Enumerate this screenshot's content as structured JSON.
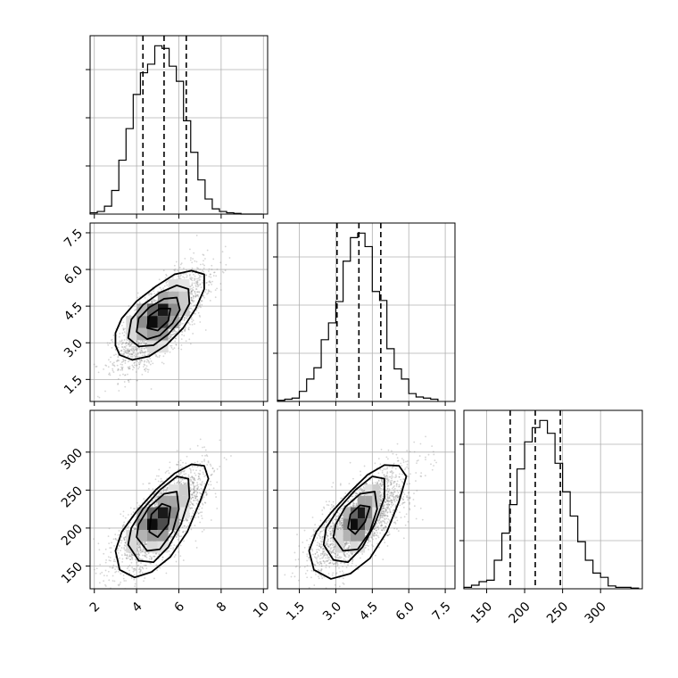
{
  "chart_data": {
    "type": "corner",
    "parameters": [
      {
        "key": "p0",
        "range": [
          1.8,
          10.2
        ],
        "ticks": [
          "2",
          "4",
          "6",
          "8",
          "10"
        ],
        "tick_values": [
          2,
          4,
          6,
          8,
          10
        ],
        "quantiles": [
          4.3,
          5.3,
          6.35
        ],
        "hist_x": [
          1.8,
          2.14,
          2.48,
          2.82,
          3.16,
          3.5,
          3.84,
          4.18,
          4.52,
          4.86,
          5.2,
          5.54,
          5.88,
          6.22,
          6.56,
          6.9,
          7.24,
          7.58,
          7.92,
          8.26,
          8.6,
          8.94,
          9.28,
          9.62,
          9.96
        ],
        "hist_counts": [
          2,
          4,
          12,
          36,
          82,
          130,
          182,
          215,
          228,
          256,
          252,
          225,
          202,
          142,
          94,
          52,
          23,
          8,
          4,
          2,
          1,
          0,
          0,
          0
        ]
      },
      {
        "key": "p1",
        "range": [
          0.6,
          7.9
        ],
        "ticks": [
          "1.5",
          "3.0",
          "4.5",
          "6.0",
          "7.5"
        ],
        "tick_values": [
          1.5,
          3.0,
          4.5,
          6.0,
          7.5
        ],
        "quantiles": [
          3.05,
          3.95,
          4.85
        ],
        "hist_x": [
          0.6,
          0.9,
          1.2,
          1.5,
          1.8,
          2.1,
          2.4,
          2.7,
          3.0,
          3.3,
          3.6,
          3.9,
          4.2,
          4.5,
          4.8,
          5.1,
          5.4,
          5.7,
          6.0,
          6.3,
          6.6,
          6.9,
          7.2
        ],
        "hist_counts": [
          2,
          4,
          6,
          18,
          40,
          60,
          110,
          140,
          178,
          250,
          292,
          300,
          276,
          196,
          180,
          94,
          58,
          40,
          14,
          8,
          6,
          4
        ]
      },
      {
        "key": "p2",
        "range": [
          120,
          355
        ],
        "ticks": [
          "150",
          "200",
          "250",
          "300"
        ],
        "tick_values": [
          150,
          200,
          250,
          300
        ],
        "quantiles": [
          181,
          214,
          247
        ],
        "hist_x": [
          120,
          130,
          140,
          150,
          160,
          170,
          180,
          190,
          200,
          210,
          220,
          230,
          240,
          250,
          260,
          270,
          280,
          290,
          300,
          310,
          320,
          330,
          340,
          350
        ],
        "hist_counts": [
          2,
          5,
          10,
          12,
          40,
          78,
          118,
          168,
          206,
          226,
          236,
          218,
          176,
          136,
          102,
          66,
          40,
          22,
          16,
          4,
          2,
          2,
          1
        ]
      }
    ],
    "pairs": [
      {
        "x": "p0",
        "y": "p1",
        "center": [
          5.2,
          4.0
        ],
        "contours": [
          [
            [
              3.0,
              2.9
            ],
            [
              3.2,
              2.5
            ],
            [
              3.8,
              2.3
            ],
            [
              4.6,
              2.45
            ],
            [
              5.4,
              2.9
            ],
            [
              6.2,
              3.6
            ],
            [
              6.8,
              4.4
            ],
            [
              7.2,
              5.2
            ],
            [
              7.2,
              5.8
            ],
            [
              6.6,
              5.95
            ],
            [
              5.8,
              5.8
            ],
            [
              4.9,
              5.3
            ],
            [
              4.0,
              4.7
            ],
            [
              3.3,
              4.0
            ],
            [
              3.0,
              3.4
            ]
          ],
          [
            [
              3.6,
              3.2
            ],
            [
              4.1,
              2.85
            ],
            [
              4.8,
              2.9
            ],
            [
              5.5,
              3.35
            ],
            [
              6.1,
              3.95
            ],
            [
              6.5,
              4.6
            ],
            [
              6.45,
              5.2
            ],
            [
              5.9,
              5.35
            ],
            [
              5.1,
              5.05
            ],
            [
              4.3,
              4.55
            ],
            [
              3.75,
              3.95
            ]
          ],
          [
            [
              4.0,
              3.45
            ],
            [
              4.5,
              3.15
            ],
            [
              5.1,
              3.3
            ],
            [
              5.7,
              3.8
            ],
            [
              6.05,
              4.35
            ],
            [
              5.9,
              4.85
            ],
            [
              5.3,
              4.8
            ],
            [
              4.6,
              4.45
            ],
            [
              4.1,
              4.0
            ]
          ],
          [
            [
              4.5,
              3.6
            ],
            [
              5.0,
              3.5
            ],
            [
              5.5,
              3.9
            ],
            [
              5.6,
              4.4
            ],
            [
              5.1,
              4.4
            ],
            [
              4.6,
              4.1
            ]
          ]
        ],
        "density_cells": [
          [
            4.75,
            3.85,
            0.95
          ],
          [
            5.25,
            4.35,
            0.9
          ],
          [
            5.25,
            3.85,
            0.7
          ],
          [
            4.75,
            4.35,
            0.6
          ],
          [
            4.25,
            3.85,
            0.45
          ],
          [
            5.75,
            4.35,
            0.45
          ],
          [
            5.25,
            3.35,
            0.4
          ],
          [
            4.75,
            3.35,
            0.4
          ],
          [
            5.75,
            3.85,
            0.35
          ],
          [
            4.25,
            3.35,
            0.3
          ],
          [
            5.75,
            4.85,
            0.3
          ],
          [
            5.25,
            4.85,
            0.35
          ],
          [
            4.25,
            4.35,
            0.3
          ],
          [
            6.25,
            4.85,
            0.2
          ],
          [
            6.25,
            4.35,
            0.2
          ],
          [
            3.75,
            3.35,
            0.15
          ],
          [
            3.75,
            3.85,
            0.15
          ],
          [
            4.75,
            2.85,
            0.15
          ],
          [
            5.25,
            2.85,
            0.12
          ],
          [
            5.75,
            5.35,
            0.12
          ],
          [
            6.25,
            5.35,
            0.1
          ]
        ],
        "cell_size": [
          0.5,
          0.5
        ],
        "spread": [
          1.0,
          0.95
        ],
        "rho": 0.72
      },
      {
        "x": "p0",
        "y": "p2",
        "center": [
          5.2,
          212
        ],
        "contours": [
          [
            [
              3.0,
              170
            ],
            [
              3.2,
              145
            ],
            [
              3.9,
              135
            ],
            [
              4.7,
              142
            ],
            [
              5.6,
              162
            ],
            [
              6.4,
              195
            ],
            [
              7.0,
              235
            ],
            [
              7.4,
              265
            ],
            [
              7.2,
              282
            ],
            [
              6.6,
              284
            ],
            [
              5.8,
              272
            ],
            [
              4.9,
              250
            ],
            [
              4.0,
              222
            ],
            [
              3.3,
              195
            ]
          ],
          [
            [
              3.6,
              178
            ],
            [
              4.1,
              157
            ],
            [
              4.8,
              155
            ],
            [
              5.5,
              175
            ],
            [
              6.1,
              205
            ],
            [
              6.5,
              240
            ],
            [
              6.45,
              265
            ],
            [
              5.9,
              268
            ],
            [
              5.1,
              250
            ],
            [
              4.3,
              225
            ],
            [
              3.75,
              200
            ]
          ],
          [
            [
              4.0,
              188
            ],
            [
              4.5,
              170
            ],
            [
              5.1,
              172
            ],
            [
              5.7,
              195
            ],
            [
              6.0,
              225
            ],
            [
              5.9,
              248
            ],
            [
              5.3,
              245
            ],
            [
              4.6,
              228
            ],
            [
              4.1,
              205
            ]
          ],
          [
            [
              4.6,
              195
            ],
            [
              5.0,
              188
            ],
            [
              5.5,
              205
            ],
            [
              5.6,
              228
            ],
            [
              5.2,
              232
            ],
            [
              4.7,
              218
            ]
          ]
        ],
        "density_cells": [
          [
            4.75,
            205,
            0.95
          ],
          [
            5.25,
            220,
            0.9
          ],
          [
            5.25,
            205,
            0.7
          ],
          [
            4.75,
            220,
            0.6
          ],
          [
            4.25,
            205,
            0.45
          ],
          [
            5.75,
            220,
            0.45
          ],
          [
            5.25,
            190,
            0.4
          ],
          [
            4.75,
            190,
            0.4
          ],
          [
            5.75,
            235,
            0.35
          ],
          [
            4.25,
            190,
            0.3
          ],
          [
            5.75,
            205,
            0.35
          ],
          [
            5.25,
            235,
            0.35
          ],
          [
            4.25,
            220,
            0.3
          ],
          [
            6.25,
            235,
            0.2
          ],
          [
            6.25,
            250,
            0.2
          ],
          [
            3.75,
            190,
            0.15
          ],
          [
            3.75,
            175,
            0.15
          ],
          [
            4.75,
            175,
            0.15
          ],
          [
            5.25,
            175,
            0.12
          ],
          [
            5.75,
            250,
            0.12
          ],
          [
            6.25,
            220,
            0.1
          ]
        ],
        "cell_size": [
          0.5,
          15
        ],
        "spread": [
          1.0,
          32
        ],
        "rho": 0.72
      },
      {
        "x": "p1",
        "y": "p2",
        "center": [
          4.0,
          212
        ],
        "contours": [
          [
            [
              1.9,
              170
            ],
            [
              2.1,
              145
            ],
            [
              2.8,
              133
            ],
            [
              3.6,
              140
            ],
            [
              4.4,
              160
            ],
            [
              5.1,
              195
            ],
            [
              5.6,
              235
            ],
            [
              5.9,
              268
            ],
            [
              5.6,
              282
            ],
            [
              5.0,
              283
            ],
            [
              4.3,
              270
            ],
            [
              3.6,
              248
            ],
            [
              2.8,
              220
            ],
            [
              2.2,
              195
            ]
          ],
          [
            [
              2.5,
              178
            ],
            [
              2.9,
              158
            ],
            [
              3.5,
              155
            ],
            [
              4.1,
              175
            ],
            [
              4.6,
              205
            ],
            [
              5.0,
              240
            ],
            [
              5.0,
              265
            ],
            [
              4.5,
              268
            ],
            [
              3.8,
              250
            ],
            [
              3.1,
              225
            ],
            [
              2.6,
              200
            ]
          ],
          [
            [
              2.9,
              188
            ],
            [
              3.3,
              170
            ],
            [
              3.9,
              172
            ],
            [
              4.4,
              195
            ],
            [
              4.7,
              225
            ],
            [
              4.6,
              248
            ],
            [
              4.0,
              245
            ],
            [
              3.4,
              228
            ],
            [
              3.0,
              205
            ]
          ],
          [
            [
              3.5,
              200
            ],
            [
              3.8,
              192
            ],
            [
              4.2,
              208
            ],
            [
              4.4,
              228
            ],
            [
              4.0,
              230
            ],
            [
              3.6,
              218
            ]
          ]
        ],
        "density_cells": [
          [
            3.75,
            205,
            0.95
          ],
          [
            4.05,
            220,
            0.9
          ],
          [
            4.05,
            205,
            0.7
          ],
          [
            3.75,
            220,
            0.6
          ],
          [
            3.45,
            205,
            0.45
          ],
          [
            4.35,
            220,
            0.45
          ],
          [
            4.05,
            190,
            0.4
          ],
          [
            3.75,
            190,
            0.4
          ],
          [
            4.35,
            235,
            0.35
          ],
          [
            3.45,
            190,
            0.3
          ],
          [
            4.35,
            205,
            0.35
          ],
          [
            4.05,
            235,
            0.35
          ],
          [
            3.45,
            220,
            0.3
          ],
          [
            4.65,
            235,
            0.2
          ],
          [
            4.65,
            250,
            0.2
          ],
          [
            3.15,
            190,
            0.15
          ],
          [
            3.15,
            175,
            0.15
          ],
          [
            3.75,
            175,
            0.15
          ],
          [
            4.05,
            175,
            0.12
          ],
          [
            4.35,
            250,
            0.12
          ],
          [
            4.65,
            220,
            0.1
          ]
        ],
        "cell_size": [
          0.3,
          15
        ],
        "spread": [
          0.95,
          32
        ],
        "rho": 0.72
      }
    ],
    "grid": true
  }
}
